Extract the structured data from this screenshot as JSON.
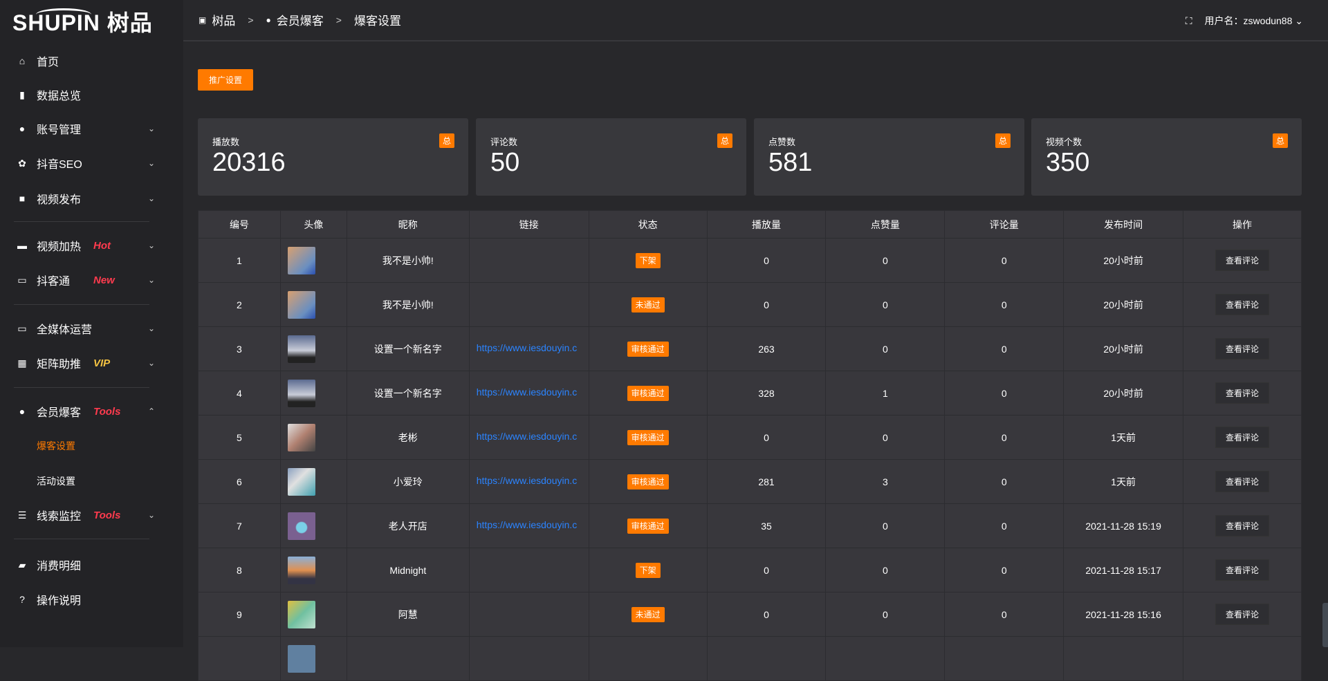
{
  "logo": {
    "text": "SHUPIN 树品"
  },
  "sidebar": {
    "items": [
      {
        "label": "首页",
        "icon": "home-icon",
        "glyph": "⌂"
      },
      {
        "label": "数据总览",
        "icon": "bar-chart-icon",
        "glyph": "▮"
      },
      {
        "label": "账号管理",
        "icon": "user-icon",
        "glyph": "●",
        "chevron": "⌄"
      },
      {
        "label": "抖音SEO",
        "icon": "gear-icon",
        "glyph": "✿",
        "chevron": "⌄"
      },
      {
        "label": "视频发布",
        "icon": "camera-icon",
        "glyph": "■",
        "chevron": "⌄"
      },
      {
        "label": "视频加热",
        "icon": "board-icon",
        "glyph": "▬",
        "badge": "Hot",
        "chevron": "⌄"
      },
      {
        "label": "抖客通",
        "icon": "chat-icon",
        "glyph": "▭",
        "badge": "New",
        "chevron": "⌄"
      },
      {
        "label": "全媒体运营",
        "icon": "monitor-icon",
        "glyph": "▭",
        "chevron": "⌄"
      },
      {
        "label": "矩阵助推",
        "icon": "grid-icon",
        "glyph": "▦",
        "badge": "VIP",
        "chevron": "⌄"
      },
      {
        "label": "会员爆客",
        "icon": "member-icon",
        "glyph": "●",
        "badge": "Tools",
        "chevron": "⌃"
      },
      {
        "label": "爆客设置"
      },
      {
        "label": "活动设置"
      },
      {
        "label": "线索监控",
        "icon": "sliders-icon",
        "glyph": "☰",
        "badge": "Tools",
        "chevron": "⌄"
      },
      {
        "label": "消费明细",
        "icon": "wallet-icon",
        "glyph": "▰"
      },
      {
        "label": "操作说明",
        "icon": "help-icon",
        "glyph": "?"
      }
    ]
  },
  "header": {
    "crumbs": [
      "树品",
      "会员爆客",
      "爆客设置"
    ],
    "user_label": "用户名：zswodun88"
  },
  "promo_button": "推广设置",
  "cards": [
    {
      "title": "播放数",
      "value": "20316",
      "tag": "总"
    },
    {
      "title": "评论数",
      "value": "50",
      "tag": "总"
    },
    {
      "title": "点赞数",
      "value": "581",
      "tag": "总"
    },
    {
      "title": "视频个数",
      "value": "350",
      "tag": "总"
    }
  ],
  "table": {
    "headers": [
      "编号",
      "头像",
      "昵称",
      "链接",
      "状态",
      "播放量",
      "点赞量",
      "评论量",
      "发布时间",
      "操作"
    ],
    "action_label": "查看评论",
    "rows": [
      {
        "id": "1",
        "name": "我不是小帅!",
        "link": "",
        "status": "下架",
        "plays": "0",
        "likes": "0",
        "comments": "0",
        "time": "20小时前",
        "avatar": "linear-gradient(135deg,#d9a070,#6a8fc0 70%,#2a4fb0)"
      },
      {
        "id": "2",
        "name": "我不是小帅!",
        "link": "",
        "status": "未通过",
        "plays": "0",
        "likes": "0",
        "comments": "0",
        "time": "20小时前",
        "avatar": "linear-gradient(135deg,#d9a070,#6a8fc0 70%,#2a4fb0)"
      },
      {
        "id": "3",
        "name": "设置一个新名字",
        "link": "https://www.iesdouyin.c",
        "status": "审核通过",
        "plays": "263",
        "likes": "0",
        "comments": "0",
        "time": "20小时前",
        "avatar": "linear-gradient(180deg,#5a6a90,#c8ccd8 55%,#222 80%)"
      },
      {
        "id": "4",
        "name": "设置一个新名字",
        "link": "https://www.iesdouyin.c",
        "status": "审核通过",
        "plays": "328",
        "likes": "1",
        "comments": "0",
        "time": "20小时前",
        "avatar": "linear-gradient(180deg,#5a6a90,#c8ccd8 55%,#222 80%)"
      },
      {
        "id": "5",
        "name": "老彬",
        "link": "https://www.iesdouyin.c",
        "status": "审核通过",
        "plays": "0",
        "likes": "0",
        "comments": "0",
        "time": "1天前",
        "avatar": "linear-gradient(135deg,#e0e0e0,#b08070 50%,#444)"
      },
      {
        "id": "6",
        "name": "小爱玲",
        "link": "https://www.iesdouyin.c",
        "status": "审核通过",
        "plays": "281",
        "likes": "3",
        "comments": "0",
        "time": "1天前",
        "avatar": "linear-gradient(135deg,#8aa0c0,#e0e0e0 40%,#40a0b0)"
      },
      {
        "id": "7",
        "name": "老人开店",
        "link": "https://www.iesdouyin.c",
        "status": "审核通过",
        "plays": "35",
        "likes": "0",
        "comments": "0",
        "time": "2021-11-28 15:19",
        "avatar": "radial-gradient(circle at 50% 55%,#7ad0e8 25%,#7a6090 30%)"
      },
      {
        "id": "8",
        "name": "Midnight",
        "link": "",
        "status": "下架",
        "plays": "0",
        "likes": "0",
        "comments": "0",
        "time": "2021-11-28 15:17",
        "avatar": "linear-gradient(180deg,#8ab0d8,#e09050 50%,#334 80%)"
      },
      {
        "id": "9",
        "name": "阿慧",
        "link": "",
        "status": "未通过",
        "plays": "0",
        "likes": "0",
        "comments": "0",
        "time": "2021-11-28 15:16",
        "avatar": "linear-gradient(135deg,#e0c040,#70c0a0 50%,#c0e0d0)"
      }
    ]
  },
  "colors": {
    "accent": "#ff7a00",
    "link": "#2b84ff",
    "badge_red": "#ff3b4e",
    "badge_vip": "#f5c342"
  }
}
